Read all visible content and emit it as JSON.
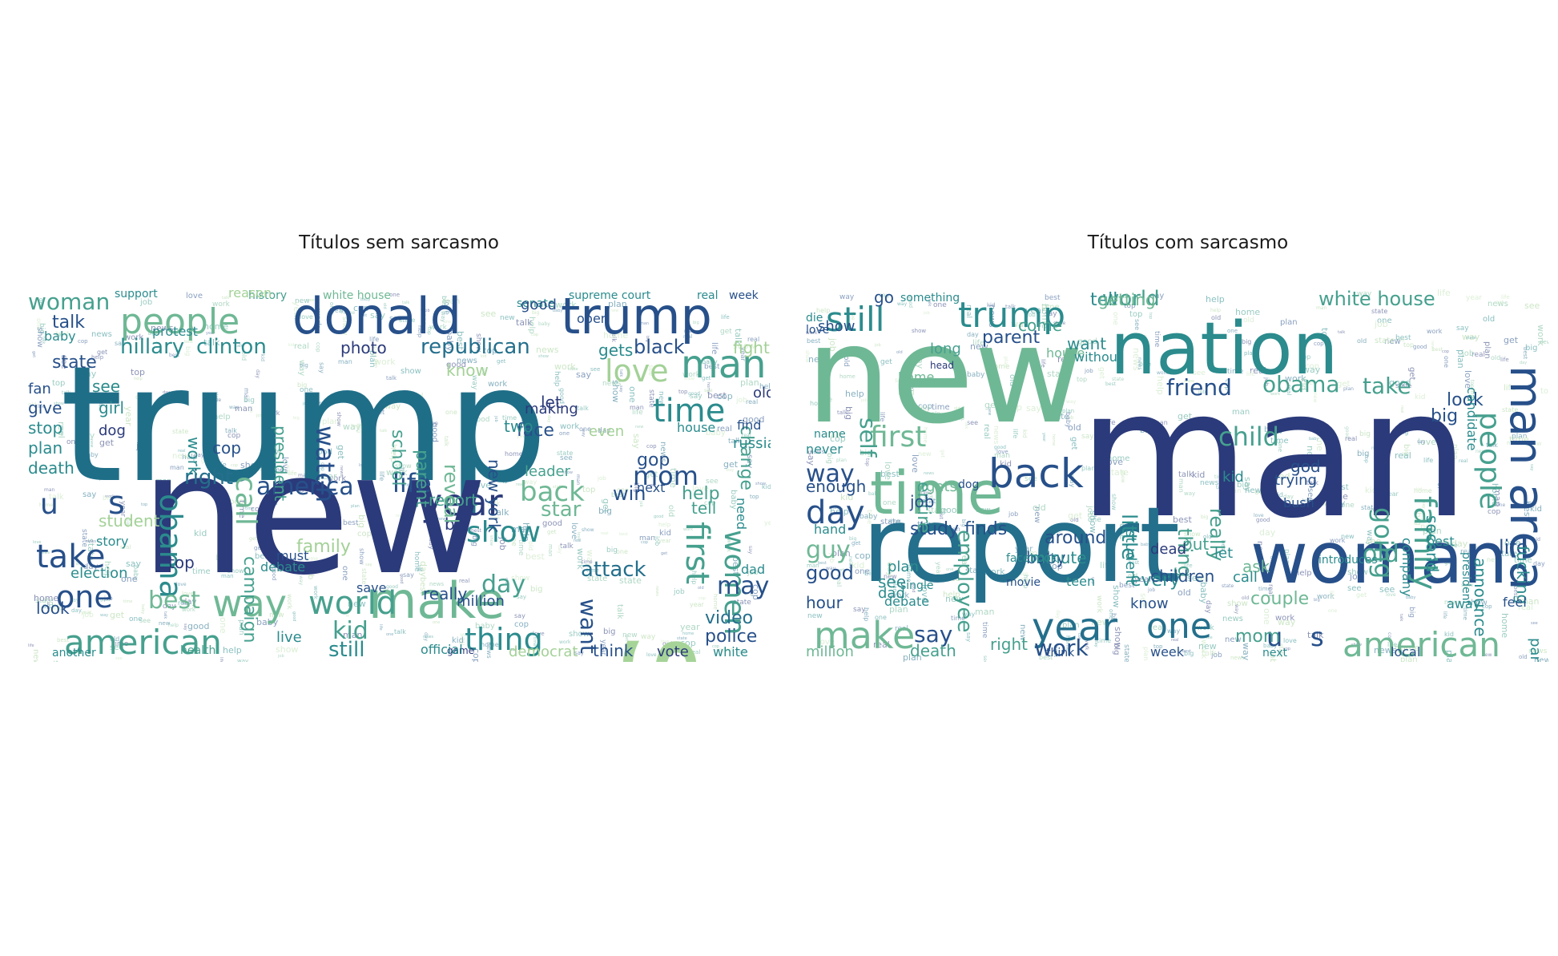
{
  "palette": [
    "#2b3a7a",
    "#27508a",
    "#246f8c",
    "#2b8b8d",
    "#46a08e",
    "#6fb895",
    "#a3d197",
    "#bfe2b4"
  ],
  "panels": [
    {
      "title": "Títulos sem sarcasmo",
      "words": [
        [
          "trump",
          "#1f6e88"
        ],
        [
          "new",
          "#2b3a7a"
        ],
        [
          "say",
          "#a6d498"
        ],
        [
          "donald",
          "#27508a"
        ],
        [
          "trump",
          "#27508a"
        ],
        [
          "people",
          "#6fb895"
        ],
        [
          "make",
          "#6fb895"
        ],
        [
          "year",
          "#2b3a7a"
        ],
        [
          "way",
          "#6fb895"
        ],
        [
          "world",
          "#46a08e"
        ],
        [
          "american",
          "#46a08e"
        ],
        [
          "time",
          "#2b8b8d"
        ],
        [
          "man",
          "#46a08e"
        ],
        [
          "love",
          "#a3d197"
        ],
        [
          "take",
          "#27508a"
        ],
        [
          "one",
          "#27508a"
        ],
        [
          "first",
          "#46a08e"
        ],
        [
          "women",
          "#46a08e"
        ],
        [
          "show",
          "#2b8b8d"
        ],
        [
          "obama",
          "#2b8b8d"
        ],
        [
          "thing",
          "#2b8b8d"
        ],
        [
          "back",
          "#6fb895"
        ],
        [
          "watch",
          "#27508a"
        ],
        [
          "life",
          "#27508a"
        ],
        [
          "america",
          "#27508a"
        ],
        [
          "call",
          "#6fb895"
        ],
        [
          "mom",
          "#27508a"
        ],
        [
          "kid",
          "#46a08e"
        ],
        [
          "u",
          "#27508a"
        ],
        [
          "s",
          "#27508a"
        ],
        [
          "woman",
          "#46a08e"
        ],
        [
          "hillary",
          "#2b8b8d"
        ],
        [
          "clinton",
          "#2b8b8d"
        ],
        [
          "republican",
          "#246f8c"
        ],
        [
          "black",
          "#27508a"
        ],
        [
          "best",
          "#6fb895"
        ],
        [
          "day",
          "#46a08e"
        ],
        [
          "may",
          "#27508a"
        ],
        [
          "video",
          "#246f8c"
        ],
        [
          "police",
          "#27508a"
        ],
        [
          "want",
          "#27508a"
        ],
        [
          "still",
          "#2b8b8d"
        ],
        [
          "attack",
          "#246f8c"
        ],
        [
          "face",
          "#27508a"
        ],
        [
          "right",
          "#246f8c"
        ],
        [
          "talk",
          "#27508a"
        ],
        [
          "state",
          "#27508a"
        ],
        [
          "photo",
          "#2b3a7a"
        ],
        [
          "new york",
          "#27508a"
        ],
        [
          "president",
          "#46a08e"
        ],
        [
          "report",
          "#46a08e"
        ],
        [
          "star",
          "#6fb895"
        ],
        [
          "win",
          "#27508a"
        ],
        [
          "gop",
          "#27508a"
        ],
        [
          "let",
          "#2b3a7a"
        ],
        [
          "help",
          "#46a08e"
        ],
        [
          "tell",
          "#46a08e"
        ],
        [
          "change",
          "#46a08e"
        ],
        [
          "white house",
          "#6fb895"
        ],
        [
          "week",
          "#27508a"
        ],
        [
          "history",
          "#46a08e"
        ],
        [
          "support",
          "#2b8b8d"
        ],
        [
          "reason",
          "#a3d197"
        ],
        [
          "senate",
          "#2b8b8d"
        ],
        [
          "supreme court",
          "#2b8b8d"
        ],
        [
          "real",
          "#2b8b8d"
        ],
        [
          "good",
          "#27508a"
        ],
        [
          "open",
          "#27508a"
        ],
        [
          "gets",
          "#2b8b8d"
        ],
        [
          "fight",
          "#a3d197"
        ],
        [
          "old",
          "#2b3a7a"
        ],
        [
          "find",
          "#27508a"
        ],
        [
          "house",
          "#2b8b8d"
        ],
        [
          "russia",
          "#2b8b8d"
        ],
        [
          "need",
          "#2b8b8d"
        ],
        [
          "dad",
          "#2b8b8d"
        ],
        [
          "white",
          "#2b8b8d"
        ],
        [
          "vote",
          "#2b3a7a"
        ],
        [
          "think",
          "#27508a"
        ],
        [
          "democrat",
          "#a3d197"
        ],
        [
          "million",
          "#27508a"
        ],
        [
          "really",
          "#27508a"
        ],
        [
          "big",
          "#2b3a7a"
        ],
        [
          "family",
          "#a3d197"
        ],
        [
          "campaign",
          "#46a08e"
        ],
        [
          "school",
          "#46a08e"
        ],
        [
          "parent",
          "#46a08e"
        ],
        [
          "reveal",
          "#6fb895"
        ],
        [
          "cop",
          "#27508a"
        ],
        [
          "work",
          "#2b8b8d"
        ],
        [
          "girl",
          "#2b8b8d"
        ],
        [
          "dog",
          "#2b3a7a"
        ],
        [
          "see",
          "#2b8b8d"
        ],
        [
          "give",
          "#27508a"
        ],
        [
          "stop",
          "#2b8b8d"
        ],
        [
          "plan",
          "#2b8b8d"
        ],
        [
          "death",
          "#2b8b8d"
        ],
        [
          "look",
          "#27508a"
        ],
        [
          "student",
          "#a3d197"
        ],
        [
          "top",
          "#2b3a7a"
        ],
        [
          "election",
          "#2b8b8d"
        ],
        [
          "story",
          "#2b8b8d"
        ],
        [
          "fan",
          "#27508a"
        ],
        [
          "two",
          "#2b8b8d"
        ],
        [
          "leader",
          "#46a08e"
        ],
        [
          "making",
          "#2b3a7a"
        ],
        [
          "know",
          "#a3d197"
        ],
        [
          "game",
          "#2b3a7a"
        ],
        [
          "official",
          "#2b8b8d"
        ],
        [
          "health",
          "#46a08e"
        ],
        [
          "another",
          "#2b8b8d"
        ],
        [
          "live",
          "#2b8b8d"
        ],
        [
          "must",
          "#27508a"
        ],
        [
          "save",
          "#27508a"
        ],
        [
          "even",
          "#a3d197"
        ],
        [
          "next",
          "#27508a"
        ],
        [
          "protest",
          "#2b8b8d"
        ],
        [
          "baby",
          "#2b8b8d"
        ],
        [
          "debate",
          "#2b8b8d"
        ],
        [
          "job",
          "#2b8b8d"
        ]
      ]
    },
    {
      "title": "Títulos com sarcasmo",
      "words": [
        [
          "man",
          "#2b3a7a"
        ],
        [
          "new",
          "#6fb895"
        ],
        [
          "report",
          "#246f8c"
        ],
        [
          "nation",
          "#2b8b8d"
        ],
        [
          "woman",
          "#27508a"
        ],
        [
          "time",
          "#6fb895"
        ],
        [
          "area",
          "#27508a"
        ],
        [
          "man",
          "#27508a"
        ],
        [
          "back",
          "#27508a"
        ],
        [
          "year",
          "#246f8c"
        ],
        [
          "one",
          "#246f8c"
        ],
        [
          "make",
          "#6fb895"
        ],
        [
          "trump",
          "#2b8b8d"
        ],
        [
          "american",
          "#6fb895"
        ],
        [
          "family",
          "#46a08e"
        ],
        [
          "people",
          "#46a08e"
        ],
        [
          "day",
          "#27508a"
        ],
        [
          "still",
          "#2b8b8d"
        ],
        [
          "first",
          "#6fb895"
        ],
        [
          "child",
          "#46a08e"
        ],
        [
          "going",
          "#46a08e"
        ],
        [
          "old",
          "#46a08e"
        ],
        [
          "take",
          "#46a08e"
        ],
        [
          "obama",
          "#46a08e"
        ],
        [
          "friend",
          "#27508a"
        ],
        [
          "world",
          "#46a08e"
        ],
        [
          "white house",
          "#46a08e"
        ],
        [
          "guy",
          "#6fb895"
        ],
        [
          "work",
          "#27508a"
        ],
        [
          "u",
          "#27508a"
        ],
        [
          "s",
          "#27508a"
        ],
        [
          "say",
          "#27508a"
        ],
        [
          "good",
          "#27508a"
        ],
        [
          "way",
          "#27508a"
        ],
        [
          "self",
          "#46a08e"
        ],
        [
          "little",
          "#2b8b8d"
        ],
        [
          "thing",
          "#46a08e"
        ],
        [
          "really",
          "#46a08e"
        ],
        [
          "look",
          "#27508a"
        ],
        [
          "life",
          "#27508a"
        ],
        [
          "announce",
          "#2b8b8d"
        ],
        [
          "fucking",
          "#2b8b8d"
        ],
        [
          "party",
          "#2b8b8d"
        ],
        [
          "couple",
          "#6fb895"
        ],
        [
          "every",
          "#2b8b8d"
        ],
        [
          "mom",
          "#46a08e"
        ],
        [
          "hour",
          "#27508a"
        ],
        [
          "death",
          "#46a08e"
        ],
        [
          "million",
          "#6fb895"
        ],
        [
          "right",
          "#46a08e"
        ],
        [
          "local",
          "#27508a"
        ],
        [
          "next",
          "#2b8b8d"
        ],
        [
          "introduces",
          "#2b8b8d"
        ],
        [
          "around",
          "#27508a"
        ],
        [
          "study finds",
          "#27508a"
        ],
        [
          "employee",
          "#46a08e"
        ],
        [
          "entire",
          "#46a08e"
        ],
        [
          "plan",
          "#2b8b8d"
        ],
        [
          "see",
          "#2b8b8d"
        ],
        [
          "kid",
          "#2b8b8d"
        ],
        [
          "big",
          "#27508a"
        ],
        [
          "second",
          "#2b8b8d"
        ],
        [
          "company",
          "#2b8b8d"
        ],
        [
          "president",
          "#2b8b8d"
        ],
        [
          "candidate",
          "#2b8b8d"
        ],
        [
          "tell",
          "#2b8b8d"
        ],
        [
          "getting",
          "#6fb895"
        ],
        [
          "parent",
          "#27508a"
        ],
        [
          "come",
          "#46a08e"
        ],
        [
          "want",
          "#2b8b8d"
        ],
        [
          "house",
          "#6fb895"
        ],
        [
          "show",
          "#27508a"
        ],
        [
          "go",
          "#27508a"
        ],
        [
          "something",
          "#2b8b8d"
        ],
        [
          "long",
          "#46a08e"
        ],
        [
          "home",
          "#6fb895"
        ],
        [
          "head",
          "#2b3a7a"
        ],
        [
          "name",
          "#2b8b8d"
        ],
        [
          "never",
          "#2b8b8d"
        ],
        [
          "enough",
          "#27508a"
        ],
        [
          "hand",
          "#2b8b8d"
        ],
        [
          "job",
          "#27508a"
        ],
        [
          "gets",
          "#6fb895"
        ],
        [
          "dad",
          "#2b8b8d"
        ],
        [
          "single",
          "#2b8b8d"
        ],
        [
          "debate",
          "#2b8b8d"
        ],
        [
          "trying",
          "#27508a"
        ],
        [
          "bush",
          "#27508a"
        ],
        [
          "god",
          "#27508a"
        ],
        [
          "best",
          "#2b8b8d"
        ],
        [
          "away",
          "#2b8b8d"
        ],
        [
          "children",
          "#27508a"
        ],
        [
          "feel",
          "#27508a"
        ],
        [
          "ask",
          "#6fb895"
        ],
        [
          "know",
          "#27508a"
        ],
        [
          "call",
          "#2b8b8d"
        ],
        [
          "put",
          "#46a08e"
        ],
        [
          "let",
          "#2b8b8d"
        ],
        [
          "baby",
          "#27508a"
        ],
        [
          "minute",
          "#2b8b8d"
        ],
        [
          "teen",
          "#2b8b8d"
        ],
        [
          "student",
          "#2b8b8d"
        ],
        [
          "dead",
          "#2b3a7a"
        ],
        [
          "facebook",
          "#2b8b8d"
        ],
        [
          "movie",
          "#27508a"
        ],
        [
          "think",
          "#27508a"
        ],
        [
          "week",
          "#27508a"
        ],
        [
          "die",
          "#2b8b8d"
        ],
        [
          "love",
          "#27508a"
        ],
        [
          "dog",
          "#27508a"
        ],
        [
          "without",
          "#2b8b8d"
        ]
      ]
    }
  ]
}
